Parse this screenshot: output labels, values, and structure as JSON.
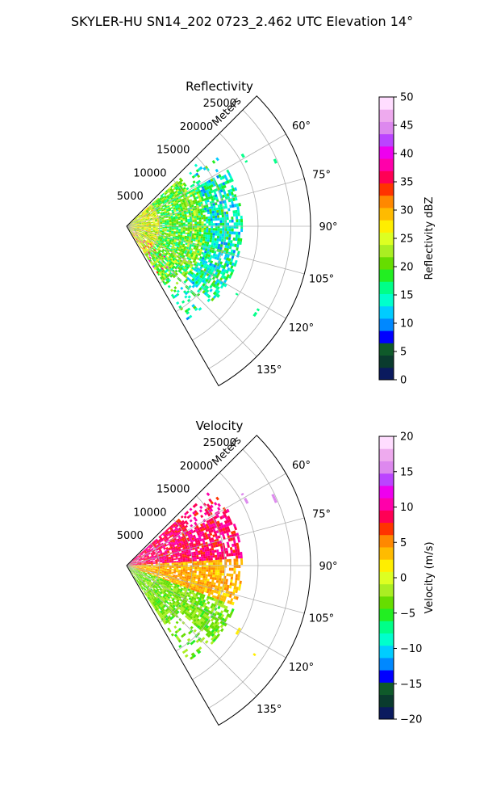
{
  "figure_title": "SKYLER-HU  SN14_202  0723_2.462 UTC Elevation 14°",
  "chart_data": [
    {
      "type": "polar-sector",
      "title": "Reflectivity",
      "radial_label": "Meters",
      "radial_ticks": [
        5000,
        10000,
        15000,
        20000,
        25000
      ],
      "radial_tick_labels": [
        "5000",
        "10000",
        "15000",
        "20000",
        "25000"
      ],
      "r_max": 28000,
      "angle_range_deg": [
        45,
        150
      ],
      "angle_ticks": [
        60,
        75,
        90,
        105,
        120,
        135
      ],
      "angle_tick_labels": [
        "60°",
        "75°",
        "90°",
        "105°",
        "120°",
        "135°"
      ],
      "grid": true,
      "colorbar": {
        "label": "Reflectivity dBZ",
        "min": 0,
        "max": 50,
        "ticks": [
          0,
          5,
          10,
          15,
          20,
          25,
          30,
          35,
          40,
          45,
          50
        ],
        "tick_labels": [
          "0",
          "5",
          "10",
          "15",
          "20",
          "25",
          "30",
          "35",
          "40",
          "45",
          "50"
        ],
        "colors": [
          "#0a1a5e",
          "#0a3b2e",
          "#0f5a2a",
          "#0000ff",
          "#0088ff",
          "#00ccff",
          "#00ffcc",
          "#00ff88",
          "#22ee22",
          "#66dd00",
          "#aaee22",
          "#ddff22",
          "#ffee00",
          "#ffbb00",
          "#ff8800",
          "#ff3300",
          "#ff0055",
          "#ff00aa",
          "#ee00ee",
          "#bb44ff",
          "#dd88ee",
          "#eeaaee",
          "#ffddff"
        ]
      },
      "echo_region": {
        "range_m": [
          0,
          17500
        ],
        "azimuth_deg": [
          48,
          146
        ]
      },
      "value_description_by_range": [
        {
          "range_m": [
            0,
            5000
          ],
          "dominant_value": 25
        },
        {
          "range_m": [
            5000,
            12000
          ],
          "dominant_value": 20
        },
        {
          "range_m": [
            12000,
            17500
          ],
          "dominant_value": 15
        }
      ]
    },
    {
      "type": "polar-sector",
      "title": "Velocity",
      "radial_label": "Meters",
      "radial_ticks": [
        5000,
        10000,
        15000,
        20000,
        25000
      ],
      "radial_tick_labels": [
        "5000",
        "10000",
        "15000",
        "20000",
        "25000"
      ],
      "r_max": 28000,
      "angle_range_deg": [
        45,
        150
      ],
      "angle_ticks": [
        60,
        75,
        90,
        105,
        120,
        135
      ],
      "angle_tick_labels": [
        "60°",
        "75°",
        "90°",
        "105°",
        "120°",
        "135°"
      ],
      "grid": true,
      "colorbar": {
        "label": "Velocity (m/s)",
        "min": -20,
        "max": 20,
        "ticks": [
          -20,
          -15,
          -10,
          -5,
          0,
          5,
          10,
          15,
          20
        ],
        "tick_labels": [
          "−20",
          "−15",
          "−10",
          "−5",
          "0",
          "5",
          "10",
          "15",
          "20"
        ],
        "colors": [
          "#0a1a5e",
          "#0a3b2e",
          "#0f5a2a",
          "#0000ff",
          "#0088ff",
          "#00ccff",
          "#00ffcc",
          "#00ff88",
          "#22ee22",
          "#66dd00",
          "#aaee22",
          "#ddff22",
          "#ffee00",
          "#ffbb00",
          "#ff8800",
          "#ff3300",
          "#ff0055",
          "#ff00aa",
          "#ee00ee",
          "#bb44ff",
          "#dd88ee",
          "#eeaaee",
          "#ffddff"
        ]
      },
      "echo_region": {
        "range_m": [
          0,
          17500
        ],
        "azimuth_deg": [
          48,
          146
        ]
      },
      "value_description_by_azimuth": [
        {
          "azimuth_deg": [
            55,
            85
          ],
          "dominant_value": 9
        },
        {
          "azimuth_deg": [
            85,
            110
          ],
          "dominant_value": 4
        },
        {
          "azimuth_deg": [
            110,
            146
          ],
          "dominant_value": -3
        }
      ]
    }
  ]
}
